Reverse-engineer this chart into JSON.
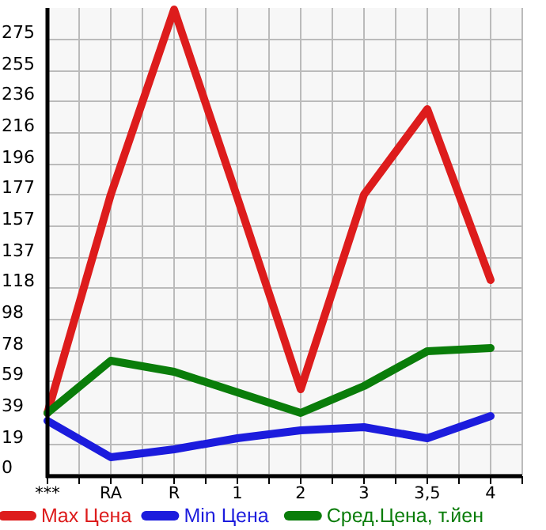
{
  "chart_data": {
    "type": "line",
    "categories": [
      "***",
      "RA",
      "R",
      "1",
      "2",
      "3",
      "3,5",
      "4"
    ],
    "series": [
      {
        "name": "Max Цена",
        "color": "#dd1c1c",
        "values": [
          39,
          177,
          294,
          175,
          54,
          177,
          231,
          123
        ]
      },
      {
        "name": "Min Цена",
        "color": "#1c1cdd",
        "values": [
          34,
          11,
          16,
          23,
          28,
          30,
          23,
          37
        ]
      },
      {
        "name": "Сред.Цена, т.йен",
        "color": "#0a7d0a",
        "values": [
          39,
          72,
          65,
          52,
          39,
          56,
          78,
          80
        ]
      }
    ],
    "ylim": [
      0,
      295
    ],
    "yticks": [
      0,
      19,
      39,
      59,
      78,
      98,
      118,
      137,
      157,
      177,
      196,
      216,
      236,
      255,
      275
    ],
    "grid": true,
    "legend": "bottom",
    "marker": "none",
    "line_style": "solid"
  }
}
